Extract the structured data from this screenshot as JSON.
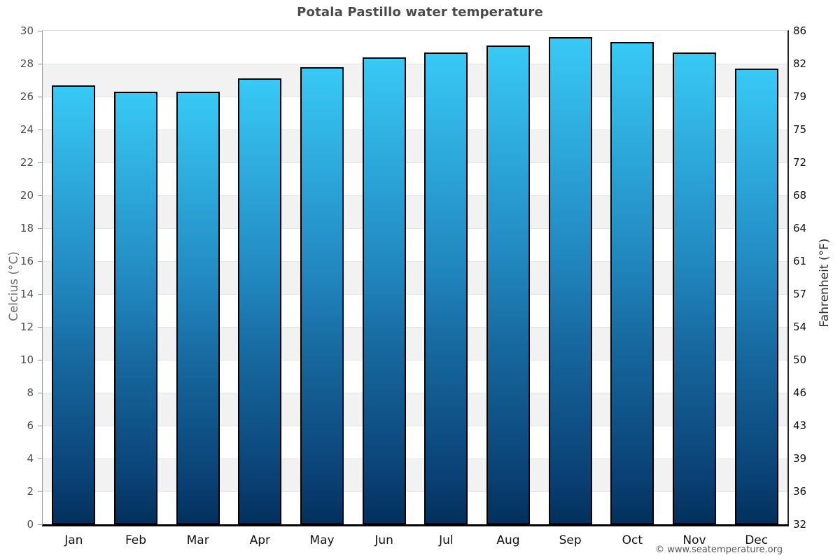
{
  "title": "Potala Pastillo water temperature",
  "footer": {
    "text": "© www.seatemperature.org"
  },
  "chart_data": {
    "type": "bar",
    "title": "Potala Pastillo water temperature",
    "categories": [
      "Jan",
      "Feb",
      "Mar",
      "Apr",
      "May",
      "Jun",
      "Jul",
      "Aug",
      "Sep",
      "Oct",
      "Nov",
      "Dec"
    ],
    "values": [
      26.7,
      26.3,
      26.3,
      27.1,
      27.8,
      28.4,
      28.7,
      29.1,
      29.6,
      29.3,
      28.7,
      27.7
    ],
    "unit": "°C",
    "xlabel": "",
    "ylabel": "Celcius (°C)",
    "ylabel_right": "Fahrenheit (°F)",
    "ylim": [
      0,
      30
    ],
    "yticks_celsius": [
      0,
      2,
      4,
      6,
      8,
      10,
      12,
      14,
      16,
      18,
      20,
      22,
      24,
      26,
      28,
      30
    ],
    "yticks_fahrenheit": [
      32,
      36,
      39,
      43,
      46,
      50,
      54,
      57,
      61,
      64,
      68,
      72,
      75,
      79,
      82,
      86
    ],
    "grid": "alternating-horizontal-bands",
    "legend": "none",
    "colors": {
      "bar_gradient_top": "#38c9f5",
      "bar_gradient_upper_mid": "#2187bf",
      "bar_gradient_lower_mid": "#16689e",
      "bar_gradient_deep": "#0a4175",
      "bar_gradient_bottom": "#03305c",
      "bar_border": "#000000",
      "band_light": "#ffffff",
      "band_dark": "#f2f2f2",
      "gridline": "#e4e4e4",
      "axis_left_spine": "#999999",
      "axis_right_spine": "#222222",
      "axis_bottom": "#000000",
      "title_color": "#4a4a4a",
      "tick_label_left_color": "#4d4d4d",
      "tick_label_right_color": "#111111",
      "footer_color": "#555555"
    }
  }
}
